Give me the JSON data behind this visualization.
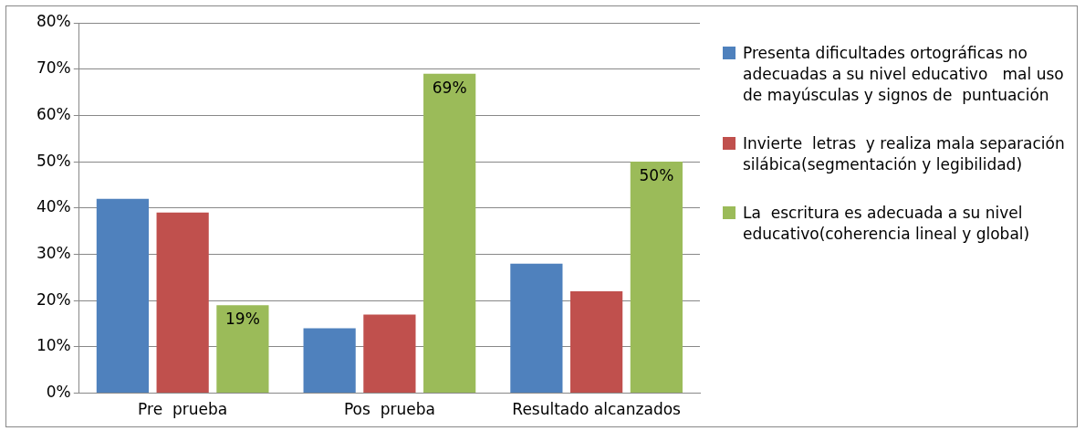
{
  "chart_data": {
    "type": "bar",
    "categories": [
      "Pre  prueba",
      "Pos  prueba",
      "Resultado alcanzados"
    ],
    "series": [
      {
        "name": "Presenta dificultades ortográficas no adecuadas a su nivel educativo   mal uso de mayúsculas y signos de  puntuación",
        "color": "#4f81bd",
        "values": [
          42,
          14,
          28
        ]
      },
      {
        "name": "Invierte  letras  y realiza mala separación silábica(segmentación y legibilidad)",
        "color": "#c0504d",
        "values": [
          39,
          17,
          22
        ]
      },
      {
        "name": "La  escritura es adecuada a su nivel educativo(coherencia lineal y global)",
        "color": "#9bbb59",
        "values": [
          19,
          69,
          50
        ],
        "value_labels": [
          "19%",
          "69%",
          "50%"
        ]
      }
    ],
    "ylim": [
      0,
      80
    ],
    "yticks": [
      {
        "value": 0,
        "label": "0%"
      },
      {
        "value": 10,
        "label": "10%"
      },
      {
        "value": 20,
        "label": "20%"
      },
      {
        "value": 30,
        "label": "30%"
      },
      {
        "value": 40,
        "label": "40%"
      },
      {
        "value": 50,
        "label": "50%"
      },
      {
        "value": 60,
        "label": "60%"
      },
      {
        "value": 70,
        "label": "70%"
      },
      {
        "value": 80,
        "label": "80%"
      }
    ],
    "grid": "y",
    "legend": "right"
  }
}
